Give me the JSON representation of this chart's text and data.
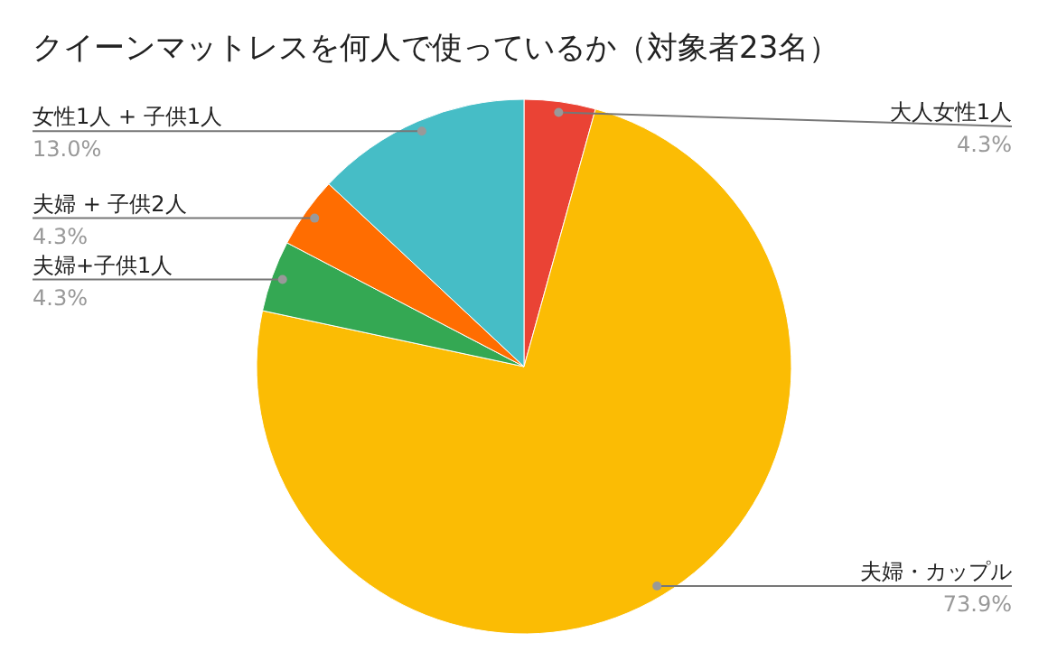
{
  "chart_data": {
    "type": "pie",
    "title": "クイーンマットレスを何人で使っているか（対象者23名）",
    "categories": [
      "大人女性1人",
      "夫婦・カップル",
      "夫婦+子供1人",
      "夫婦 + 子供2人",
      "女性1人 + 子供1人"
    ],
    "values": [
      4.3,
      73.9,
      4.3,
      4.3,
      13.0
    ],
    "colors": [
      "#ea4335",
      "#fbbc04",
      "#34a853",
      "#ff6d01",
      "#46bdc6"
    ],
    "value_labels": [
      "4.3%",
      "73.9%",
      "4.3%",
      "4.3%",
      "13.0%"
    ]
  }
}
